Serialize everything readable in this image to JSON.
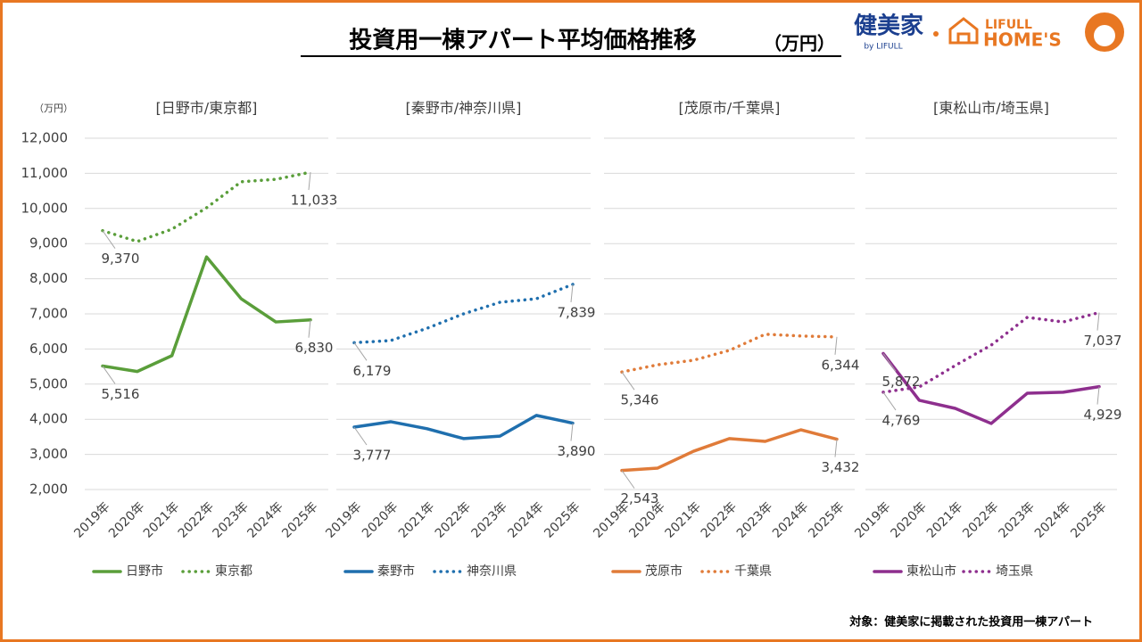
{
  "title": "投資用一棟アパート平均価格推移",
  "title_unit": "（万円）",
  "logo": {
    "kenbiya": "健美家",
    "kenbiya_sub": "by LIFULL",
    "lifull": "LIFULL",
    "homes": "HOME'S"
  },
  "footnote": "対象：健美家に掲載された投資用一棟アパート",
  "y_axis": {
    "label": "（万円）",
    "ylim": [
      2000,
      12000
    ],
    "yticks": [
      {
        "value": 2000,
        "label": "2,000"
      },
      {
        "value": 3000,
        "label": "3,000"
      },
      {
        "value": 4000,
        "label": "4,000"
      },
      {
        "value": 5000,
        "label": "5,000"
      },
      {
        "value": 6000,
        "label": "6,000"
      },
      {
        "value": 7000,
        "label": "7,000"
      },
      {
        "value": 8000,
        "label": "8,000"
      },
      {
        "value": 9000,
        "label": "9,000"
      },
      {
        "value": 10000,
        "label": "10,000"
      },
      {
        "value": 11000,
        "label": "11,000"
      },
      {
        "value": 12000,
        "label": "12,000"
      }
    ],
    "grid": true
  },
  "chart_data": [
    {
      "type": "line",
      "title": "[日野市/東京都]",
      "categories": [
        "2019年",
        "2020年",
        "2021年",
        "2022年",
        "2023年",
        "2024年",
        "2025年"
      ],
      "series": [
        {
          "name": "日野市",
          "color": "#5a9e3a",
          "style": "solid",
          "values": [
            5516,
            5360,
            5810,
            8620,
            7430,
            6770,
            6830
          ],
          "value_labels": [
            "5,516",
            null,
            null,
            null,
            null,
            null,
            "6,830"
          ]
        },
        {
          "name": "東京都",
          "color": "#5a9e3a",
          "style": "dotted",
          "values": [
            9370,
            9060,
            9410,
            10020,
            10760,
            10830,
            11033
          ],
          "value_labels": [
            "9,370",
            null,
            null,
            null,
            null,
            null,
            "11,033"
          ]
        }
      ]
    },
    {
      "type": "line",
      "title": "[秦野市/神奈川県]",
      "categories": [
        "2019年",
        "2020年",
        "2021年",
        "2022年",
        "2023年",
        "2024年",
        "2025年"
      ],
      "series": [
        {
          "name": "秦野市",
          "color": "#1f6fae",
          "style": "solid",
          "values": [
            3777,
            3930,
            3730,
            3450,
            3520,
            4110,
            3890
          ],
          "value_labels": [
            "3,777",
            null,
            null,
            null,
            null,
            null,
            "3,890"
          ]
        },
        {
          "name": "神奈川県",
          "color": "#1f6fae",
          "style": "dotted",
          "values": [
            6179,
            6240,
            6590,
            7000,
            7330,
            7430,
            7839
          ],
          "value_labels": [
            "6,179",
            null,
            null,
            null,
            null,
            null,
            "7,839"
          ]
        }
      ]
    },
    {
      "type": "line",
      "title": "[茂原市/千葉県]",
      "categories": [
        "2019年",
        "2020年",
        "2021年",
        "2022年",
        "2023年",
        "2024年",
        "2025年"
      ],
      "series": [
        {
          "name": "茂原市",
          "color": "#e07b39",
          "style": "solid",
          "values": [
            2543,
            2610,
            3090,
            3450,
            3370,
            3700,
            3432
          ],
          "value_labels": [
            "2,543",
            null,
            null,
            null,
            null,
            null,
            "3,432"
          ]
        },
        {
          "name": "千葉県",
          "color": "#e07b39",
          "style": "dotted",
          "values": [
            5346,
            5550,
            5680,
            5960,
            6420,
            6370,
            6344
          ],
          "value_labels": [
            "5,346",
            null,
            null,
            null,
            null,
            null,
            "6,344"
          ]
        }
      ]
    },
    {
      "type": "line",
      "title": "[東松山市/埼玉県]",
      "categories": [
        "2019年",
        "2020年",
        "2021年",
        "2022年",
        "2023年",
        "2024年",
        "2025年"
      ],
      "series": [
        {
          "name": "東松山市",
          "color": "#8e2f8e",
          "style": "solid",
          "values": [
            5872,
            4540,
            4310,
            3880,
            4740,
            4770,
            4929
          ],
          "value_labels": [
            "5,872",
            null,
            null,
            null,
            null,
            null,
            "4,929"
          ]
        },
        {
          "name": "埼玉県",
          "color": "#8e2f8e",
          "style": "dotted",
          "values": [
            4769,
            4920,
            5530,
            6110,
            6900,
            6770,
            7037
          ],
          "value_labels": [
            "4,769",
            null,
            null,
            null,
            null,
            null,
            "7,037"
          ]
        }
      ]
    }
  ]
}
